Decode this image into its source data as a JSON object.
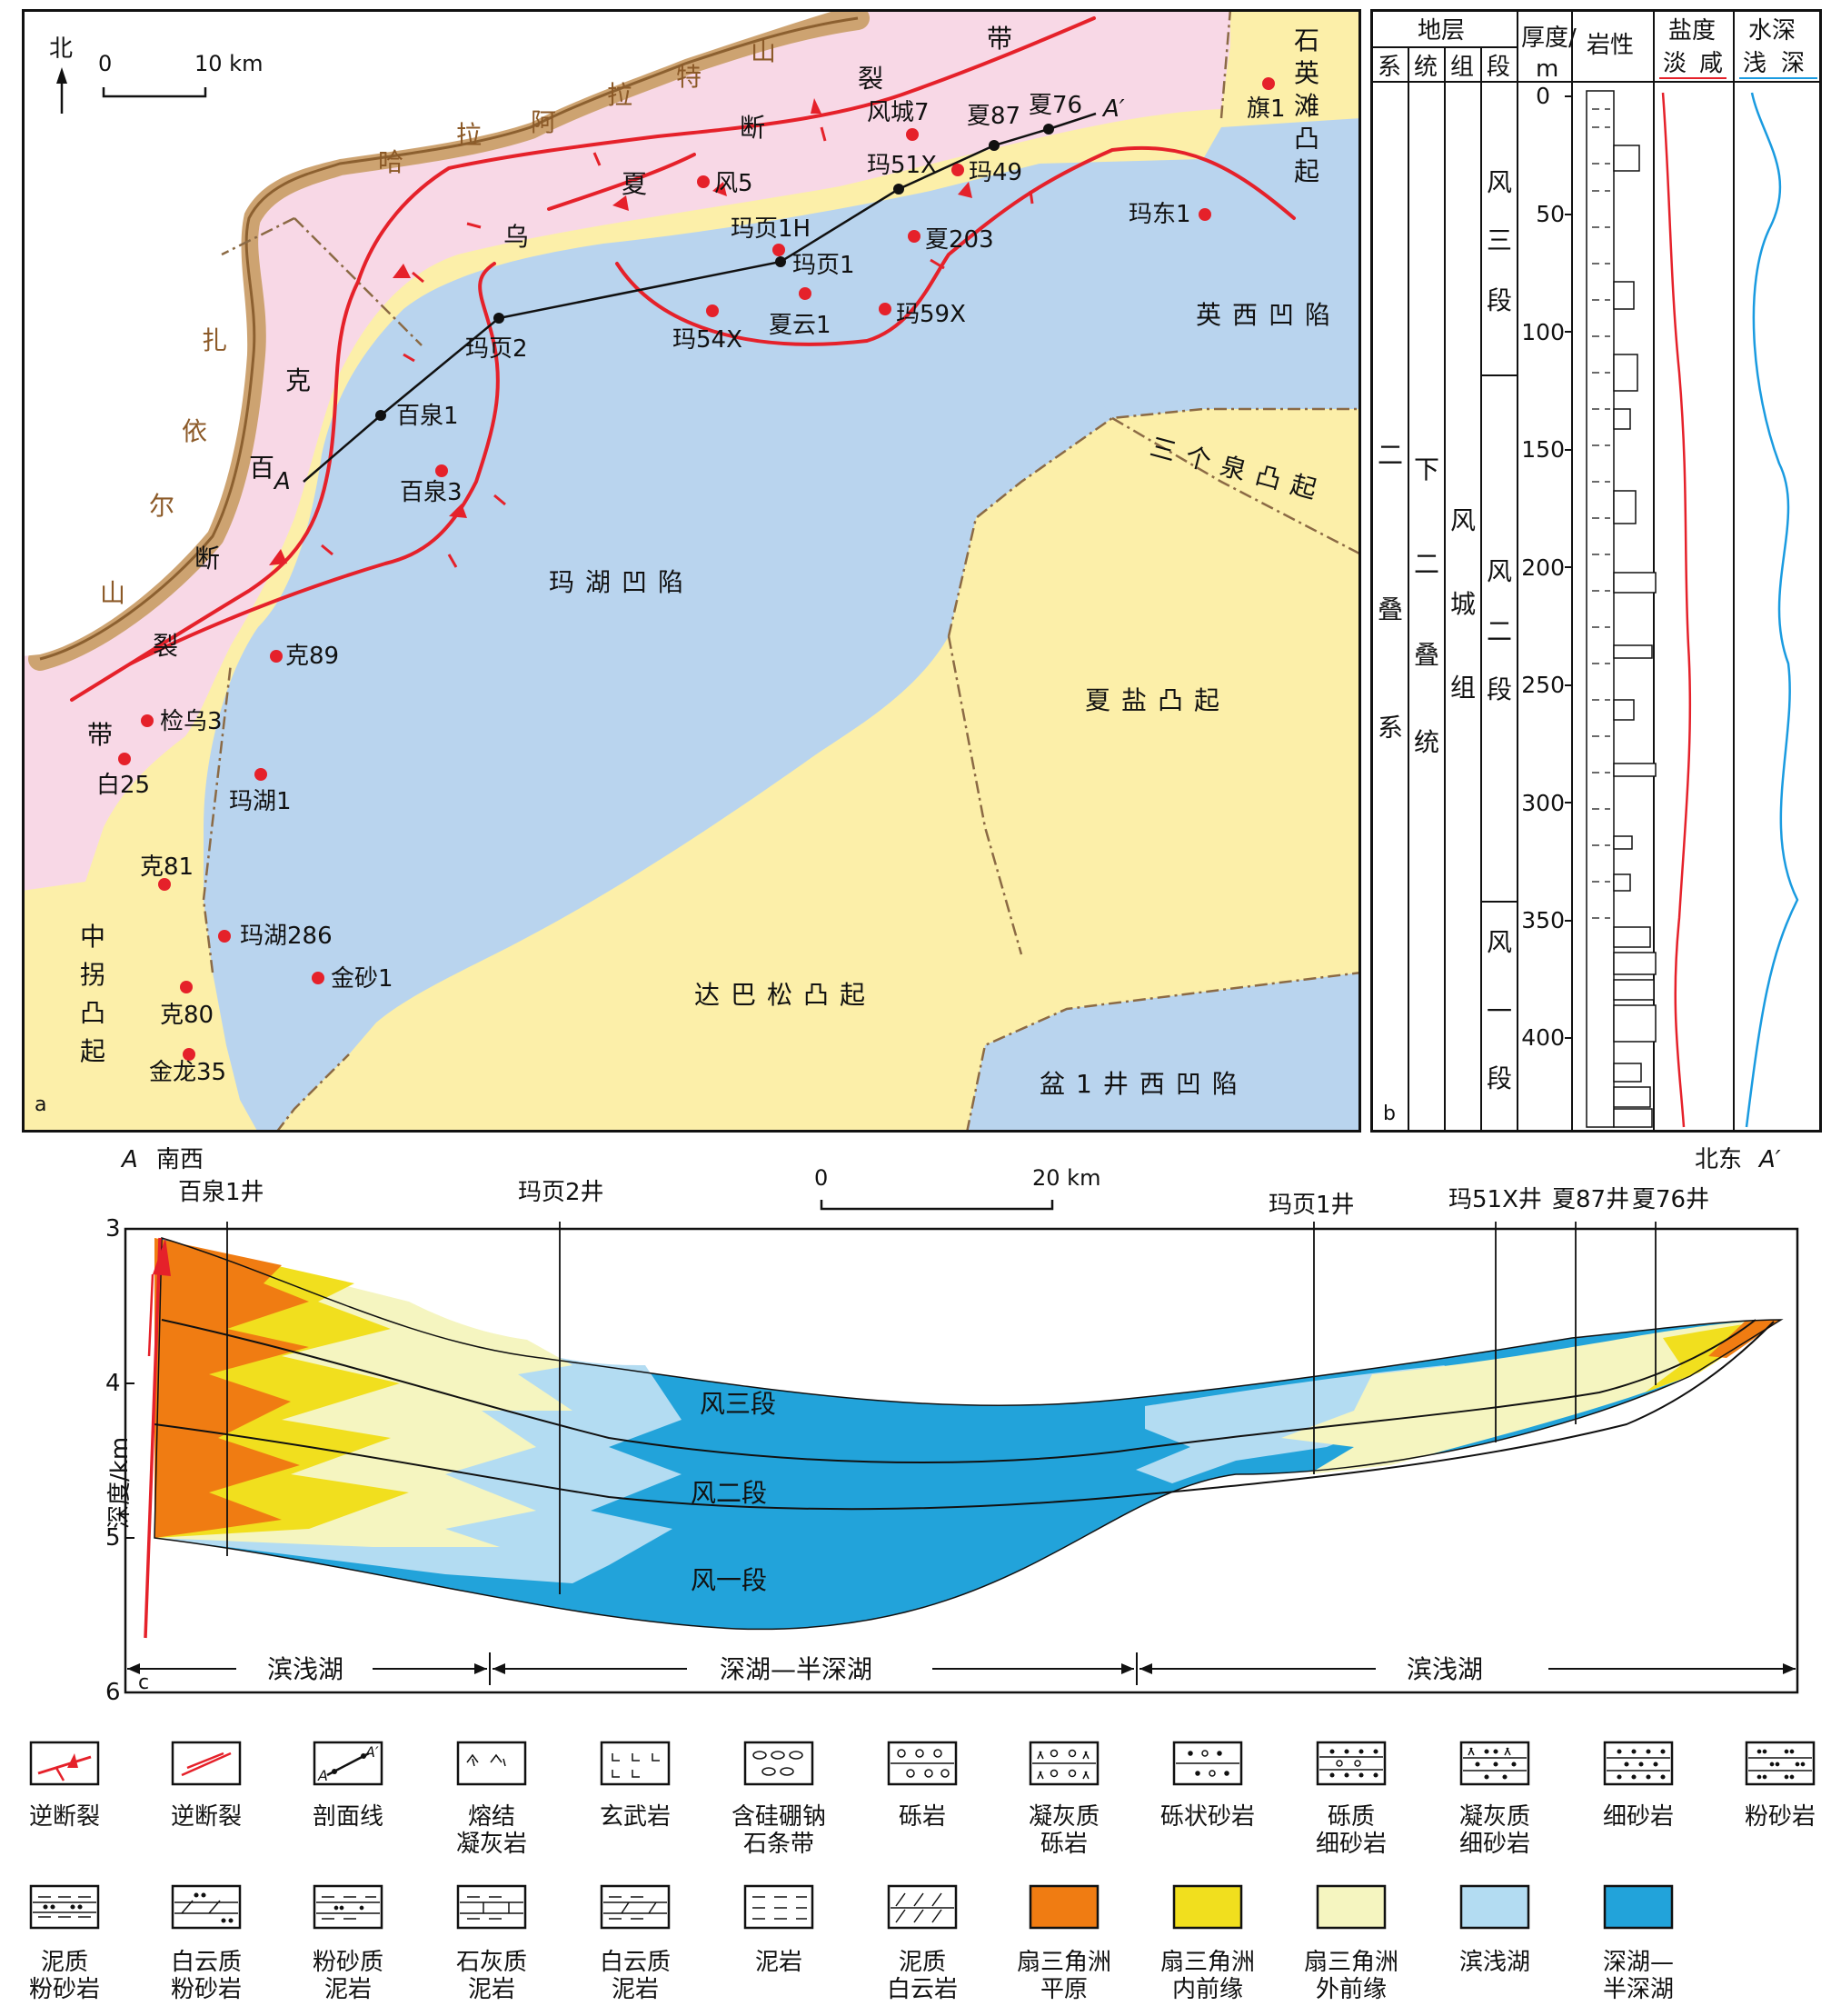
{
  "colors": {
    "pink": "#f8d8e6",
    "yellow": "#fcefa9",
    "blue": "#b9d4ee",
    "mountain": "#b08040",
    "fault": "#e5212a",
    "fan_plain": "#f07c12",
    "inner_front": "#f1df1e",
    "outer_front": "#f5f5c0",
    "shore_lake": "#b3dcf2",
    "deep_lake": "#22a3da"
  },
  "map": {
    "panel_letter": "a",
    "north_label": "北",
    "scale": {
      "zero": "0",
      "ten": "10 km"
    },
    "mountains": [
      {
        "label": "哈拉阿拉特山",
        "chars": [
          "哈",
          "拉",
          "阿",
          "拉",
          "特",
          "山"
        ]
      },
      {
        "label": "扎依尔山",
        "chars": [
          "扎",
          "依",
          "尔",
          "山"
        ]
      }
    ],
    "fault_zones": [
      {
        "label": "克百断裂带",
        "chars": [
          "克",
          "百",
          "断",
          "裂",
          "带"
        ]
      },
      {
        "label": "乌夏断裂带",
        "chars": [
          "乌",
          "夏",
          "断",
          "裂",
          "带"
        ]
      }
    ],
    "regions": [
      {
        "name": "石英滩凸起",
        "chars": [
          "石",
          "英",
          "滩",
          "凸",
          "起"
        ]
      },
      {
        "name": "英西凹陷"
      },
      {
        "name": "三个泉凸起"
      },
      {
        "name": "玛湖凹陷"
      },
      {
        "name": "夏盐凸起"
      },
      {
        "name": "中拐凸起",
        "chars": [
          "中",
          "拐",
          "凸",
          "起"
        ]
      },
      {
        "name": "达巴松凸起"
      },
      {
        "name": "盆1井西凹陷"
      }
    ],
    "section_end_a": "A",
    "section_end_a2": "A′",
    "wells": [
      "旗1",
      "风城7",
      "夏87",
      "夏76",
      "玛51X",
      "玛49",
      "风5",
      "玛页1H",
      "夏203",
      "玛页1",
      "玛东1",
      "玛54X",
      "夏云1",
      "玛59X",
      "玛页2",
      "百泉1",
      "百泉3",
      "克89",
      "检乌3",
      "白25",
      "玛湖1",
      "克81",
      "玛湖286",
      "金砂1",
      "克80",
      "金龙35"
    ]
  },
  "column": {
    "panel_letter": "b",
    "header_group": "地层",
    "header_system": "系",
    "header_series": "统",
    "header_formation": "组",
    "header_member": "段",
    "header_thickness_line1": "厚度/",
    "header_thickness_line2": "m",
    "header_lithology": "岩性",
    "header_salinity_title": "盐度",
    "header_salinity_fresh": "淡",
    "header_salinity_salty": "咸",
    "header_depth_title": "水深",
    "header_depth_shallow": "浅",
    "header_depth_deep": "深",
    "system": "二叠系",
    "system_chars": [
      "二",
      "叠",
      "系"
    ],
    "series": "下二叠统",
    "series_chars": [
      "下",
      "二",
      "叠",
      "统"
    ],
    "formation": "风城组",
    "formation_chars": [
      "风",
      "城",
      "组"
    ],
    "members": [
      {
        "name": "风三段",
        "chars": [
          "风",
          "三",
          "段"
        ]
      },
      {
        "name": "风二段",
        "chars": [
          "风",
          "二",
          "段"
        ]
      },
      {
        "name": "风一段",
        "chars": [
          "风",
          "一",
          "段"
        ]
      }
    ],
    "ticks": [
      "0",
      "50",
      "100",
      "150",
      "200",
      "250",
      "300",
      "350",
      "400"
    ]
  },
  "section": {
    "panel_letter": "c",
    "left_end": "A",
    "left_dir": "南西",
    "right_dir": "北东",
    "right_end": "A′",
    "scale": {
      "zero": "0",
      "twenty": "20 km"
    },
    "ylabel": "深度/km",
    "yticks": [
      "3",
      "4",
      "5",
      "6"
    ],
    "wells": [
      "百泉1井",
      "玛页2井",
      "玛页1井",
      "玛51X井",
      "夏87井",
      "夏76井"
    ],
    "members": [
      "风三段",
      "风二段",
      "风一段"
    ],
    "zones": [
      "滨浅湖",
      "深湖—半深湖",
      "滨浅湖"
    ]
  },
  "legend": {
    "row1": [
      {
        "key": "thrust-fault-1",
        "label": "逆断裂"
      },
      {
        "key": "thrust-fault-2",
        "label": "逆断裂"
      },
      {
        "key": "section-line",
        "label": "剖面线",
        "sym_a": "A",
        "sym_b": "A′"
      },
      {
        "key": "welded-tuff",
        "label": "熔结凝灰岩",
        "lines": [
          "熔结",
          "凝灰岩"
        ]
      },
      {
        "key": "basalt",
        "label": "玄武岩"
      },
      {
        "key": "reedmergnerite-belt",
        "label": "含硅硼钠石条带",
        "lines": [
          "含硅硼钠",
          "石条带"
        ]
      },
      {
        "key": "conglomerate",
        "label": "砾岩"
      },
      {
        "key": "tuffaceous-conglomerate",
        "label": "凝灰质砾岩",
        "lines": [
          "凝灰质",
          "砾岩"
        ]
      },
      {
        "key": "gravelly-sandstone",
        "label": "砾状砂岩"
      },
      {
        "key": "gravelly-fine-sandstone",
        "label": "砾质细砂岩",
        "lines": [
          "砾质",
          "细砂岩"
        ]
      },
      {
        "key": "tuffaceous-fine-sandstone",
        "label": "凝灰质细砂岩",
        "lines": [
          "凝灰质",
          "细砂岩"
        ]
      },
      {
        "key": "fine-sandstone",
        "label": "细砂岩"
      },
      {
        "key": "siltstone",
        "label": "粉砂岩"
      }
    ],
    "row2": [
      {
        "key": "muddy-siltstone",
        "label": "泥质粉砂岩",
        "lines": [
          "泥质",
          "粉砂岩"
        ]
      },
      {
        "key": "dolomitic-siltstone",
        "label": "白云质粉砂岩",
        "lines": [
          "白云质",
          "粉砂岩"
        ]
      },
      {
        "key": "silty-mudstone",
        "label": "粉砂质泥岩",
        "lines": [
          "粉砂质",
          "泥岩"
        ]
      },
      {
        "key": "calcareous-mudstone",
        "label": "石灰质泥岩",
        "lines": [
          "石灰质",
          "泥岩"
        ]
      },
      {
        "key": "dolomitic-mudstone",
        "label": "白云质泥岩",
        "lines": [
          "白云质",
          "泥岩"
        ]
      },
      {
        "key": "mudstone",
        "label": "泥岩"
      },
      {
        "key": "muddy-dolomite",
        "label": "泥质白云岩",
        "lines": [
          "泥质",
          "白云岩"
        ]
      },
      {
        "key": "fan-delta-plain",
        "label": "扇三角洲平原",
        "lines": [
          "扇三角洲",
          "平原"
        ]
      },
      {
        "key": "fan-delta-inner-front",
        "label": "扇三角洲内前缘",
        "lines": [
          "扇三角洲",
          "内前缘"
        ]
      },
      {
        "key": "fan-delta-outer-front",
        "label": "扇三角洲外前缘",
        "lines": [
          "扇三角洲",
          "外前缘"
        ]
      },
      {
        "key": "shore-shallow-lake",
        "label": "滨浅湖"
      },
      {
        "key": "deep-semi-deep-lake",
        "label": "深湖—半深湖",
        "lines": [
          "深湖—",
          "半深湖"
        ]
      }
    ]
  }
}
